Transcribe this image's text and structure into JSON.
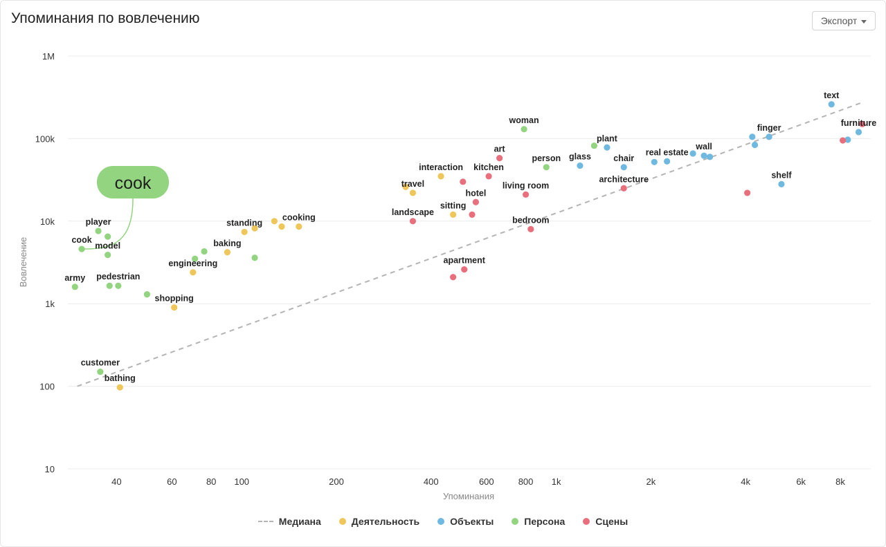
{
  "header": {
    "title": "Упоминания по вовлечению",
    "export_label": "Экспорт"
  },
  "colors": {
    "activity": "#efc65a",
    "objects": "#6fb9e0",
    "persona": "#92d47f",
    "scenes": "#e96f7d",
    "median": "#b4b4b4",
    "tooltip": "#92d47f"
  },
  "tooltip": {
    "text": "cook",
    "target": "cook"
  },
  "chart_data": {
    "type": "scatter",
    "title": "Упоминания по вовлечению",
    "xlabel": "Упоминания",
    "ylabel": "Вовлечение",
    "xscale": "log",
    "yscale": "log",
    "xlim": [
      28,
      10000
    ],
    "ylim": [
      10,
      1000000
    ],
    "x_ticks": [
      {
        "v": 40,
        "label": "40"
      },
      {
        "v": 60,
        "label": "60"
      },
      {
        "v": 80,
        "label": "80"
      },
      {
        "v": 100,
        "label": "100"
      },
      {
        "v": 200,
        "label": "200"
      },
      {
        "v": 400,
        "label": "400"
      },
      {
        "v": 600,
        "label": "600"
      },
      {
        "v": 800,
        "label": "800"
      },
      {
        "v": 1000,
        "label": "1k"
      },
      {
        "v": 2000,
        "label": "2k"
      },
      {
        "v": 4000,
        "label": "4k"
      },
      {
        "v": 6000,
        "label": "6k"
      },
      {
        "v": 8000,
        "label": "8k"
      }
    ],
    "y_ticks": [
      {
        "v": 10,
        "label": "10"
      },
      {
        "v": 100,
        "label": "100"
      },
      {
        "v": 1000,
        "label": "1k"
      },
      {
        "v": 10000,
        "label": "10k"
      },
      {
        "v": 100000,
        "label": "100k"
      },
      {
        "v": 1000000,
        "label": "1M"
      }
    ],
    "grid": "horizontal",
    "legend_position": "bottom",
    "median_line": {
      "name": "Медиана",
      "from": [
        30,
        100
      ],
      "to": [
        9300,
        270000
      ]
    },
    "series": [
      {
        "name": "Деятельность",
        "color_key": "activity",
        "points": [
          {
            "x": 41,
            "y": 97,
            "label": "bathing"
          },
          {
            "x": 61,
            "y": 900,
            "label": "shopping"
          },
          {
            "x": 70,
            "y": 2400,
            "label": "engineering"
          },
          {
            "x": 90,
            "y": 4200,
            "label": "baking"
          },
          {
            "x": 102,
            "y": 7400,
            "label": "standing"
          },
          {
            "x": 110,
            "y": 8200,
            "label": ""
          },
          {
            "x": 127,
            "y": 10000,
            "label": ""
          },
          {
            "x": 134,
            "y": 8600,
            "label": ""
          },
          {
            "x": 152,
            "y": 8600,
            "label": "cooking"
          },
          {
            "x": 332,
            "y": 26000,
            "label": ""
          },
          {
            "x": 350,
            "y": 22000,
            "label": "travel"
          },
          {
            "x": 430,
            "y": 35000,
            "label": "interaction"
          },
          {
            "x": 470,
            "y": 12000,
            "label": "sitting"
          }
        ]
      },
      {
        "name": "Объекты",
        "color_key": "objects",
        "points": [
          {
            "x": 1190,
            "y": 47000,
            "label": "glass"
          },
          {
            "x": 1450,
            "y": 78000,
            "label": "plant"
          },
          {
            "x": 1640,
            "y": 45000,
            "label": "chair"
          },
          {
            "x": 2050,
            "y": 52000,
            "label": ""
          },
          {
            "x": 2250,
            "y": 53000,
            "label": "real estate"
          },
          {
            "x": 2720,
            "y": 66000,
            "label": ""
          },
          {
            "x": 2950,
            "y": 62000,
            "label": "wall"
          },
          {
            "x": 3080,
            "y": 60000,
            "label": ""
          },
          {
            "x": 4200,
            "y": 105000,
            "label": ""
          },
          {
            "x": 4280,
            "y": 84000,
            "label": ""
          },
          {
            "x": 4750,
            "y": 105000,
            "label": "finger"
          },
          {
            "x": 5200,
            "y": 28000,
            "label": "shelf"
          },
          {
            "x": 7500,
            "y": 260000,
            "label": "text"
          },
          {
            "x": 8450,
            "y": 97000,
            "label": ""
          },
          {
            "x": 9150,
            "y": 120000,
            "label": "furniture"
          }
        ]
      },
      {
        "name": "Персона",
        "color_key": "persona",
        "points": [
          {
            "x": 29.5,
            "y": 1600,
            "label": "army"
          },
          {
            "x": 31,
            "y": 4600,
            "label": "cook"
          },
          {
            "x": 35.5,
            "y": 150,
            "label": "customer"
          },
          {
            "x": 35,
            "y": 7600,
            "label": "player"
          },
          {
            "x": 37.5,
            "y": 6500,
            "label": ""
          },
          {
            "x": 37.5,
            "y": 3900,
            "label": "model"
          },
          {
            "x": 38,
            "y": 1650,
            "label": ""
          },
          {
            "x": 40.5,
            "y": 1650,
            "label": "pedestrian"
          },
          {
            "x": 50,
            "y": 1300,
            "label": ""
          },
          {
            "x": 71,
            "y": 3500,
            "label": ""
          },
          {
            "x": 76,
            "y": 4300,
            "label": ""
          },
          {
            "x": 110,
            "y": 3600,
            "label": ""
          },
          {
            "x": 790,
            "y": 130000,
            "label": "woman"
          },
          {
            "x": 930,
            "y": 45000,
            "label": "person"
          },
          {
            "x": 1320,
            "y": 82000,
            "label": ""
          }
        ]
      },
      {
        "name": "Сцены",
        "color_key": "scenes",
        "points": [
          {
            "x": 350,
            "y": 10000,
            "label": "landscape"
          },
          {
            "x": 470,
            "y": 2100,
            "label": ""
          },
          {
            "x": 510,
            "y": 2600,
            "label": "apartment"
          },
          {
            "x": 505,
            "y": 30000,
            "label": ""
          },
          {
            "x": 540,
            "y": 12000,
            "label": ""
          },
          {
            "x": 555,
            "y": 17000,
            "label": "hotel"
          },
          {
            "x": 610,
            "y": 35000,
            "label": "kitchen"
          },
          {
            "x": 660,
            "y": 58000,
            "label": "art"
          },
          {
            "x": 800,
            "y": 21000,
            "label": "living room"
          },
          {
            "x": 830,
            "y": 8000,
            "label": "bedroom"
          },
          {
            "x": 1640,
            "y": 25000,
            "label": "architecture"
          },
          {
            "x": 4050,
            "y": 22000,
            "label": ""
          },
          {
            "x": 8150,
            "y": 95000,
            "label": ""
          },
          {
            "x": 9400,
            "y": 150000,
            "label": ""
          }
        ]
      }
    ]
  },
  "legend": [
    {
      "label": "Медиана",
      "kind": "dash",
      "color_key": "median"
    },
    {
      "label": "Деятельность",
      "kind": "dot",
      "color_key": "activity"
    },
    {
      "label": "Объекты",
      "kind": "dot",
      "color_key": "objects"
    },
    {
      "label": "Персона",
      "kind": "dot",
      "color_key": "persona"
    },
    {
      "label": "Сцены",
      "kind": "dot",
      "color_key": "scenes"
    }
  ]
}
